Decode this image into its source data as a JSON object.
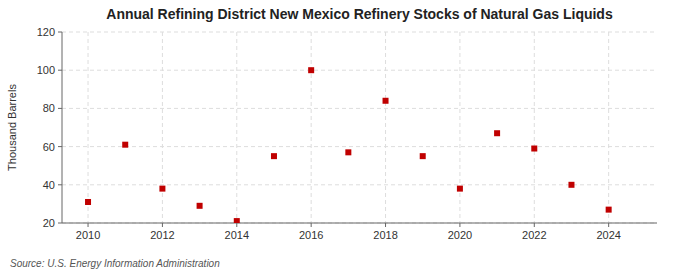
{
  "chart_data": {
    "type": "scatter",
    "title": "Annual Refining District New Mexico Refinery Stocks of Natural Gas Liquids",
    "ylabel": "Thousand Barrels",
    "source": "Source: U.S. Energy Information Administration",
    "x": [
      2010,
      2011,
      2012,
      2013,
      2014,
      2015,
      2016,
      2017,
      2018,
      2019,
      2020,
      2021,
      2022,
      2023,
      2024
    ],
    "values": [
      31,
      61,
      38,
      29,
      21,
      55,
      100,
      57,
      84,
      55,
      38,
      67,
      59,
      40,
      27
    ],
    "color": "#c00000",
    "marker": "square",
    "xlim": [
      2009.3,
      2025.3
    ],
    "xticks": [
      2010,
      2012,
      2014,
      2016,
      2018,
      2020,
      2022,
      2024
    ],
    "ylim": [
      20,
      120
    ],
    "yticks": [
      20,
      40,
      60,
      80,
      100,
      120
    ],
    "grid": true
  }
}
